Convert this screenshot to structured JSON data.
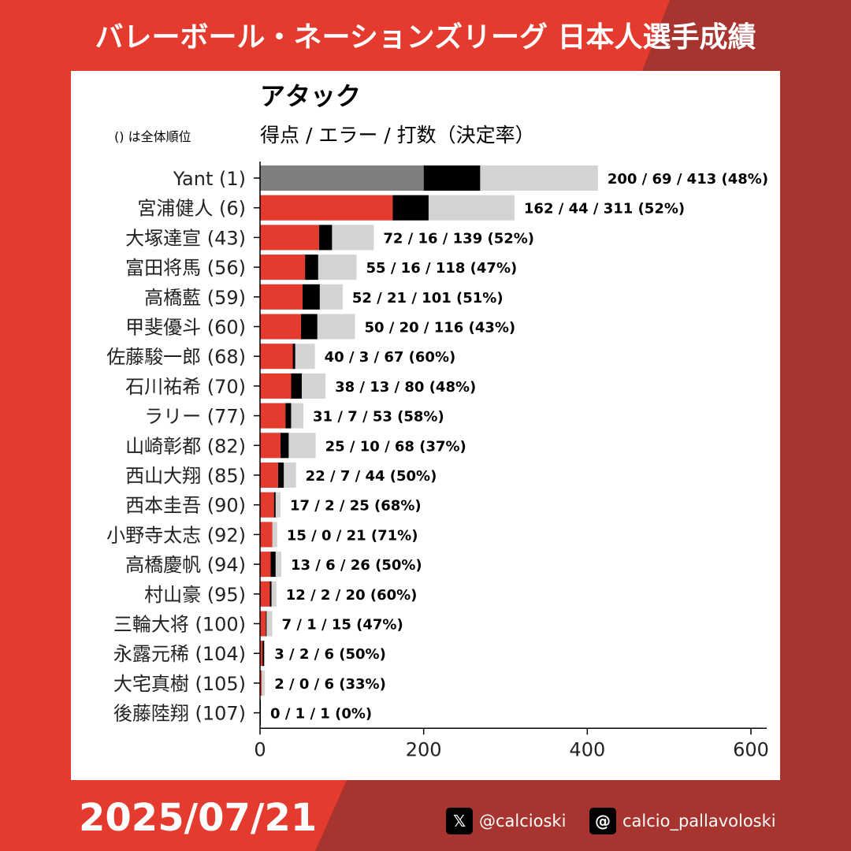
{
  "header": {
    "title": "バレーボール・ネーションズリーグ 日本人選手成績"
  },
  "footer": {
    "date": "2025/07/21",
    "x_handle": "@calcioski",
    "threads_handle": "calcio_pallavoloski"
  },
  "colors": {
    "background": "#e53b2f",
    "background_dark": "#a8342f",
    "points": "#e53b2f",
    "points_top": "#7f7f7f",
    "errors": "#000000",
    "attempts": "#d3d3d3"
  },
  "chart_data": {
    "type": "bar",
    "orientation": "horizontal",
    "stacked": true,
    "title": "アタック",
    "subtitle": "得点 / エラー / 打数（決定率）",
    "note": "() は全体順位",
    "xlim": [
      0,
      600
    ],
    "xticks": [
      0,
      200,
      400,
      600
    ],
    "grid": false,
    "categories": [
      "Yant (1)",
      "宮浦健人 (6)",
      "大塚達宣 (43)",
      "富田将馬 (56)",
      "高橋藍 (59)",
      "甲斐優斗 (60)",
      "佐藤駿一郎 (68)",
      "石川祐希 (70)",
      "ラリー (77)",
      "山崎彰都 (82)",
      "西山大翔 (85)",
      "西本圭吾 (90)",
      "小野寺太志 (92)",
      "高橋慶帆 (94)",
      "村山豪 (95)",
      "三輪大将 (100)",
      "永露元稀 (104)",
      "大宅真樹 (105)",
      "後藤陸翔 (107)"
    ],
    "series": [
      {
        "values": [
          200,
          162,
          72,
          55,
          52,
          50,
          40,
          38,
          31,
          25,
          22,
          17,
          15,
          13,
          12,
          7,
          3,
          2,
          0
        ]
      },
      {
        "values": [
          69,
          44,
          16,
          16,
          21,
          20,
          3,
          13,
          7,
          10,
          7,
          2,
          0,
          6,
          2,
          1,
          2,
          0,
          1
        ]
      },
      {
        "values": [
          413,
          311,
          139,
          118,
          101,
          116,
          67,
          80,
          53,
          68,
          44,
          25,
          21,
          26,
          20,
          15,
          6,
          6,
          1
        ]
      }
    ],
    "labels": [
      "200 / 69 / 413 (48%)",
      "162 / 44 / 311 (52%)",
      "72 / 16 / 139 (52%)",
      "55 / 16 / 118 (47%)",
      "52 / 21 / 101 (51%)",
      "50 / 20 / 116 (43%)",
      "40 / 3 / 67 (60%)",
      "38 / 13 / 80 (48%)",
      "31 / 7 / 53 (58%)",
      "25 / 10 / 68 (37%)",
      "22 / 7 / 44 (50%)",
      "17 / 2 / 25 (68%)",
      "15 / 0 / 21 (71%)",
      "13 / 6 / 26 (50%)",
      "12 / 2 / 20 (60%)",
      "7 / 1 / 15 (47%)",
      "3 / 2 / 6 (50%)",
      "2 / 0 / 6 (33%)",
      "0 / 1 / 1 (0%)"
    ]
  }
}
